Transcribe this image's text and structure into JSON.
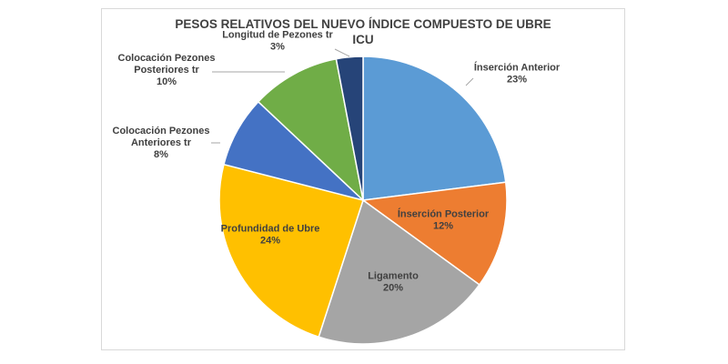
{
  "chart_data": {
    "type": "pie",
    "title": [
      "PESOS RELATIVOS DEL NUEVO ÍNDICE COMPUESTO DE UBRE",
      "ICU"
    ],
    "slices": [
      {
        "name": [
          "Ínserción Anterior"
        ],
        "value": 23,
        "label": "23%",
        "color": "#5b9bd5"
      },
      {
        "name": [
          "Ínserción Posterior"
        ],
        "value": 12,
        "label": "12%",
        "color": "#ed7d31"
      },
      {
        "name": [
          "Ligamento"
        ],
        "value": 20,
        "label": "20%",
        "color": "#a5a5a5"
      },
      {
        "name": [
          "Profundidad de Ubre"
        ],
        "value": 24,
        "label": "24%",
        "color": "#ffc000"
      },
      {
        "name": [
          "Colocación Pezones",
          "Anteriores tr"
        ],
        "value": 8,
        "label": "8%",
        "color": "#4472c4"
      },
      {
        "name": [
          "Colocación Pezones",
          "Posteriores tr"
        ],
        "value": 10,
        "label": "10%",
        "color": "#70ad47"
      },
      {
        "name": [
          "Longitud de Pezones tr"
        ],
        "value": 3,
        "label": "3%",
        "color": "#264478"
      }
    ],
    "start_angle": "12 o'clock, clockwise",
    "legend": "none"
  }
}
